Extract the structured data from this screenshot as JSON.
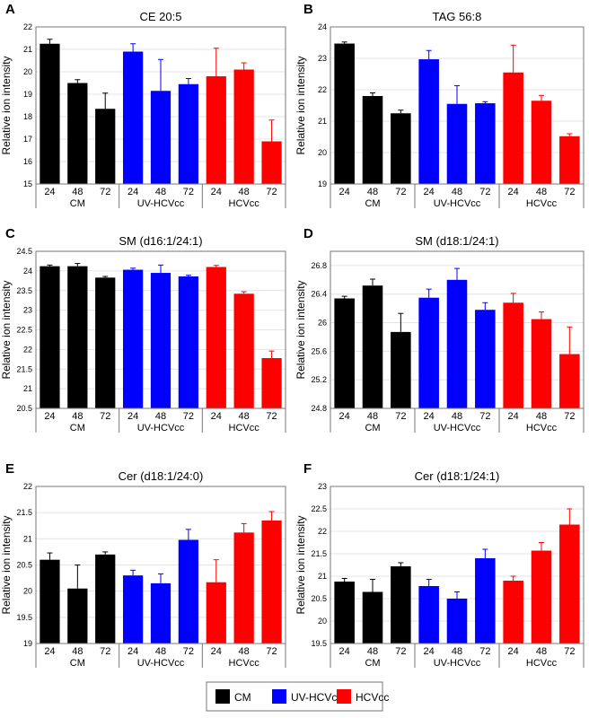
{
  "colors": {
    "CM": "#000000",
    "UV-HCVcc": "#0000ff",
    "HCVcc": "#ff0000"
  },
  "legend": {
    "items": [
      {
        "label": "CM",
        "color": "#000000"
      },
      {
        "label": "UV-HCVcc",
        "color": "#0000ff"
      },
      {
        "label": "HCVcc",
        "color": "#ff0000"
      }
    ]
  },
  "chart_data": [
    {
      "panel": "A",
      "type": "bar",
      "title": "CE 20:5",
      "ylabel": "Relative ion intensity",
      "ylim": [
        15,
        22
      ],
      "yticks": [
        "15",
        "16",
        "17",
        "18",
        "19",
        "20",
        "21",
        "22"
      ],
      "categories": [
        "24",
        "48",
        "72",
        "24",
        "48",
        "72",
        "24",
        "48",
        "72"
      ],
      "groups": [
        "CM",
        "UV-HCVcc",
        "HCVcc"
      ],
      "values": [
        21.25,
        19.5,
        18.35,
        20.9,
        19.15,
        19.45,
        19.8,
        20.1,
        16.9
      ],
      "errors": [
        0.2,
        0.15,
        0.7,
        0.35,
        1.4,
        0.25,
        1.25,
        0.3,
        0.95
      ]
    },
    {
      "panel": "B",
      "type": "bar",
      "title": "TAG 56:8",
      "ylabel": "Relative ion intensity",
      "ylim": [
        19,
        24
      ],
      "yticks": [
        "19",
        "20",
        "21",
        "22",
        "23",
        "24"
      ],
      "categories": [
        "24",
        "48",
        "72",
        "24",
        "48",
        "72",
        "24",
        "48",
        "72"
      ],
      "groups": [
        "CM",
        "UV-HCVcc",
        "HCVcc"
      ],
      "values": [
        23.47,
        21.8,
        21.25,
        22.97,
        21.55,
        21.57,
        22.55,
        21.65,
        20.52
      ],
      "errors": [
        0.05,
        0.1,
        0.1,
        0.28,
        0.58,
        0.05,
        0.87,
        0.17,
        0.08
      ]
    },
    {
      "panel": "C",
      "type": "bar",
      "title": "SM (d16:1/24:1)",
      "ylabel": "Relative ion intensity",
      "ylim": [
        20.5,
        24.5
      ],
      "yticks": [
        "20.5",
        "21",
        "21.5",
        "22",
        "22.5",
        "23",
        "23.5",
        "24",
        "24.5"
      ],
      "categories": [
        "24",
        "48",
        "72",
        "24",
        "48",
        "72",
        "24",
        "48",
        "72"
      ],
      "groups": [
        "CM",
        "UV-HCVcc",
        "HCVcc"
      ],
      "values": [
        24.12,
        24.12,
        23.83,
        24.03,
        23.95,
        23.86,
        24.1,
        23.42,
        21.78
      ],
      "errors": [
        0.03,
        0.07,
        0.03,
        0.04,
        0.2,
        0.03,
        0.04,
        0.05,
        0.18
      ]
    },
    {
      "panel": "D",
      "type": "bar",
      "title": "SM (d18:1/24:1)",
      "ylabel": "Relative ion intensity",
      "ylim": [
        24.8,
        27
      ],
      "yticks": [
        "24.8",
        "25.2",
        "25.6",
        "26",
        "26.4",
        "26.8"
      ],
      "categories": [
        "24",
        "48",
        "72",
        "24",
        "48",
        "72",
        "24",
        "48",
        "72"
      ],
      "groups": [
        "CM",
        "UV-HCVcc",
        "HCVcc"
      ],
      "values": [
        26.34,
        26.52,
        25.87,
        26.35,
        26.6,
        26.18,
        26.28,
        26.05,
        25.56
      ],
      "errors": [
        0.03,
        0.09,
        0.26,
        0.12,
        0.16,
        0.1,
        0.13,
        0.1,
        0.38
      ]
    },
    {
      "panel": "E",
      "type": "bar",
      "title": "Cer (d18:1/24:0)",
      "ylabel": "Relative ion intensity",
      "ylim": [
        19,
        22
      ],
      "yticks": [
        "19",
        "19.5",
        "20",
        "20.5",
        "21",
        "21.5",
        "22"
      ],
      "categories": [
        "24",
        "48",
        "72",
        "24",
        "48",
        "72",
        "24",
        "48",
        "72"
      ],
      "groups": [
        "CM",
        "UV-HCVcc",
        "HCVcc"
      ],
      "values": [
        20.6,
        20.05,
        20.7,
        20.3,
        20.15,
        20.98,
        20.17,
        21.12,
        21.35
      ],
      "errors": [
        0.13,
        0.45,
        0.05,
        0.1,
        0.18,
        0.2,
        0.43,
        0.17,
        0.17
      ]
    },
    {
      "panel": "F",
      "type": "bar",
      "title": "Cer (d18:1/24:1)",
      "ylabel": "Relative ion intensity",
      "ylim": [
        19.5,
        23
      ],
      "yticks": [
        "19.5",
        "20",
        "20.5",
        "21",
        "21.5",
        "22",
        "22.5",
        "23"
      ],
      "categories": [
        "24",
        "48",
        "72",
        "24",
        "48",
        "72",
        "24",
        "48",
        "72"
      ],
      "groups": [
        "CM",
        "UV-HCVcc",
        "HCVcc"
      ],
      "values": [
        20.88,
        20.65,
        21.22,
        20.78,
        20.5,
        21.4,
        20.9,
        21.57,
        22.15
      ],
      "errors": [
        0.07,
        0.28,
        0.08,
        0.15,
        0.15,
        0.2,
        0.1,
        0.18,
        0.35
      ]
    }
  ]
}
